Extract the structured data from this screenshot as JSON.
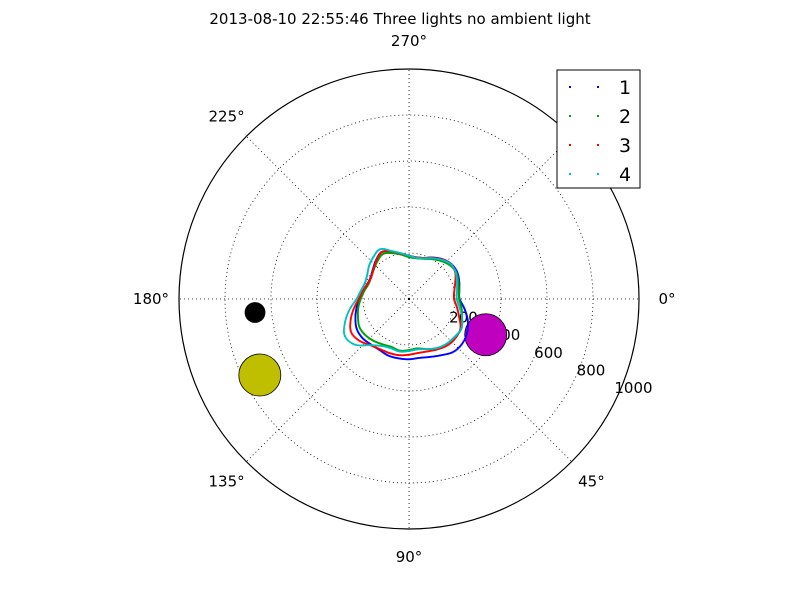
{
  "chart_data": {
    "type": "scatter",
    "projection": "polar",
    "title": "2013-08-10 22:55:46 Three lights no ambient light",
    "theta_direction": "clockwise",
    "theta_zero": "right",
    "theta_unit": "degrees",
    "theta_ticks": [
      0,
      45,
      90,
      135,
      180,
      225,
      270,
      315
    ],
    "theta_tick_labels": [
      "0°",
      "45°",
      "90°",
      "135°",
      "180°",
      "225°",
      "270°",
      ""
    ],
    "rlim": [
      0,
      1000
    ],
    "r_ticks": [
      200,
      400,
      600,
      800,
      1000
    ],
    "r_tick_labels": [
      "200",
      "400",
      "600",
      "800",
      "1000"
    ],
    "r_label_angle_deg": 22.5,
    "grid": true,
    "legend": {
      "placement": "top-right"
    },
    "series": [
      {
        "name": "1",
        "color": "#0000ff",
        "marker": "point",
        "points": [
          [
            0,
            220
          ],
          [
            10,
            245
          ],
          [
            20,
            272
          ],
          [
            30,
            292
          ],
          [
            40,
            302
          ],
          [
            50,
            300
          ],
          [
            60,
            282
          ],
          [
            70,
            268
          ],
          [
            80,
            260
          ],
          [
            90,
            262
          ],
          [
            100,
            262
          ],
          [
            110,
            262
          ],
          [
            120,
            256
          ],
          [
            130,
            258
          ],
          [
            140,
            264
          ],
          [
            150,
            262
          ],
          [
            160,
            248
          ],
          [
            170,
            232
          ],
          [
            180,
            218
          ],
          [
            190,
            202
          ],
          [
            200,
            192
          ],
          [
            210,
            192
          ],
          [
            220,
            204
          ],
          [
            230,
            222
          ],
          [
            240,
            236
          ],
          [
            250,
            218
          ],
          [
            260,
            200
          ],
          [
            270,
            188
          ],
          [
            280,
            184
          ],
          [
            290,
            190
          ],
          [
            300,
            208
          ],
          [
            310,
            226
          ],
          [
            320,
            238
          ],
          [
            330,
            240
          ],
          [
            340,
            232
          ],
          [
            350,
            222
          ]
        ]
      },
      {
        "name": "2",
        "color": "#00a000",
        "marker": "point",
        "points": [
          [
            0,
            218
          ],
          [
            10,
            232
          ],
          [
            20,
            245
          ],
          [
            30,
            262
          ],
          [
            40,
            258
          ],
          [
            50,
            256
          ],
          [
            60,
            246
          ],
          [
            70,
            232
          ],
          [
            80,
            218
          ],
          [
            90,
            222
          ],
          [
            100,
            228
          ],
          [
            110,
            222
          ],
          [
            120,
            228
          ],
          [
            130,
            238
          ],
          [
            140,
            246
          ],
          [
            150,
            248
          ],
          [
            160,
            236
          ],
          [
            170,
            224
          ],
          [
            180,
            210
          ],
          [
            190,
            198
          ],
          [
            200,
            188
          ],
          [
            210,
            190
          ],
          [
            220,
            200
          ],
          [
            230,
            214
          ],
          [
            240,
            226
          ],
          [
            250,
            212
          ],
          [
            260,
            196
          ],
          [
            270,
            182
          ],
          [
            280,
            180
          ],
          [
            290,
            186
          ],
          [
            300,
            200
          ],
          [
            310,
            216
          ],
          [
            320,
            230
          ],
          [
            330,
            236
          ],
          [
            340,
            228
          ],
          [
            350,
            220
          ]
        ]
      },
      {
        "name": "3",
        "color": "#ff0000",
        "marker": "point",
        "points": [
          [
            0,
            196
          ],
          [
            10,
            212
          ],
          [
            20,
            232
          ],
          [
            30,
            258
          ],
          [
            40,
            264
          ],
          [
            50,
            262
          ],
          [
            60,
            252
          ],
          [
            70,
            242
          ],
          [
            80,
            238
          ],
          [
            90,
            242
          ],
          [
            100,
            248
          ],
          [
            110,
            250
          ],
          [
            120,
            252
          ],
          [
            130,
            262
          ],
          [
            140,
            282
          ],
          [
            150,
            290
          ],
          [
            160,
            270
          ],
          [
            170,
            244
          ],
          [
            180,
            218
          ],
          [
            190,
            204
          ],
          [
            200,
            192
          ],
          [
            210,
            190
          ],
          [
            220,
            202
          ],
          [
            230,
            220
          ],
          [
            240,
            236
          ],
          [
            250,
            220
          ],
          [
            260,
            200
          ],
          [
            270,
            188
          ],
          [
            280,
            184
          ],
          [
            290,
            190
          ],
          [
            300,
            206
          ],
          [
            310,
            224
          ],
          [
            320,
            236
          ],
          [
            330,
            232
          ],
          [
            340,
            214
          ],
          [
            350,
            200
          ]
        ]
      },
      {
        "name": "4",
        "color": "#00bfbf",
        "marker": "point",
        "points": [
          [
            0,
            208
          ],
          [
            10,
            224
          ],
          [
            20,
            246
          ],
          [
            30,
            262
          ],
          [
            40,
            258
          ],
          [
            50,
            254
          ],
          [
            60,
            246
          ],
          [
            70,
            232
          ],
          [
            80,
            222
          ],
          [
            90,
            226
          ],
          [
            100,
            232
          ],
          [
            110,
            228
          ],
          [
            120,
            236
          ],
          [
            130,
            262
          ],
          [
            140,
            308
          ],
          [
            150,
            322
          ],
          [
            160,
            296
          ],
          [
            170,
            262
          ],
          [
            180,
            228
          ],
          [
            190,
            212
          ],
          [
            200,
            204
          ],
          [
            210,
            210
          ],
          [
            220,
            226
          ],
          [
            230,
            240
          ],
          [
            240,
            250
          ],
          [
            250,
            222
          ],
          [
            260,
            202
          ],
          [
            270,
            188
          ],
          [
            280,
            182
          ],
          [
            290,
            188
          ],
          [
            300,
            204
          ],
          [
            310,
            222
          ],
          [
            320,
            236
          ],
          [
            330,
            234
          ],
          [
            340,
            222
          ],
          [
            350,
            212
          ]
        ]
      }
    ],
    "light_sources": [
      {
        "theta": 175,
        "r": 672,
        "color": "#000000",
        "size": "small"
      },
      {
        "theta": 153,
        "r": 728,
        "color": "#bfbf00",
        "size": "large"
      },
      {
        "theta": 25,
        "r": 368,
        "color": "#bf00bf",
        "size": "large"
      }
    ]
  }
}
